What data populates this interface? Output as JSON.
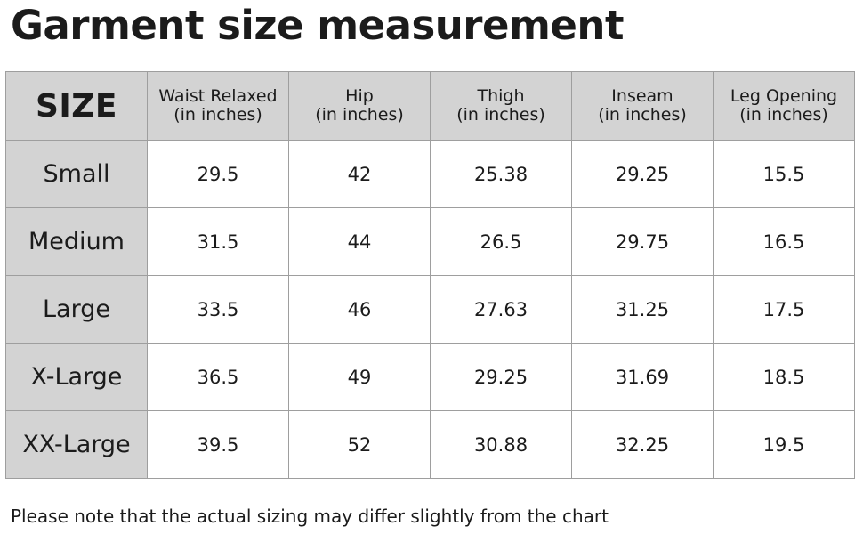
{
  "title": "Garment size measurement",
  "table": {
    "size_header": "SIZE",
    "columns": [
      {
        "name": "Waist Relaxed",
        "unit": "(in inches)"
      },
      {
        "name": "Hip",
        "unit": "(in inches)"
      },
      {
        "name": "Thigh",
        "unit": "(in inches)"
      },
      {
        "name": "Inseam",
        "unit": "(in inches)"
      },
      {
        "name": "Leg Opening",
        "unit": "(in inches)"
      }
    ],
    "rows": [
      {
        "size": "Small",
        "values": [
          "29.5",
          "42",
          "25.38",
          "29.25",
          "15.5"
        ]
      },
      {
        "size": "Medium",
        "values": [
          "31.5",
          "44",
          "26.5",
          "29.75",
          "16.5"
        ]
      },
      {
        "size": "Large",
        "values": [
          "33.5",
          "46",
          "27.63",
          "31.25",
          "17.5"
        ]
      },
      {
        "size": "X-Large",
        "values": [
          "36.5",
          "49",
          "29.25",
          "31.69",
          "18.5"
        ]
      },
      {
        "size": "XX-Large",
        "values": [
          "39.5",
          "52",
          "30.88",
          "32.25",
          "19.5"
        ]
      }
    ]
  },
  "note": "Please note that the actual sizing may differ slightly from the chart",
  "colors": {
    "header_background": "#d3d3d3",
    "cell_background": "#ffffff",
    "grid_line": "#9e9e9e",
    "text": "#1b1b1b"
  }
}
